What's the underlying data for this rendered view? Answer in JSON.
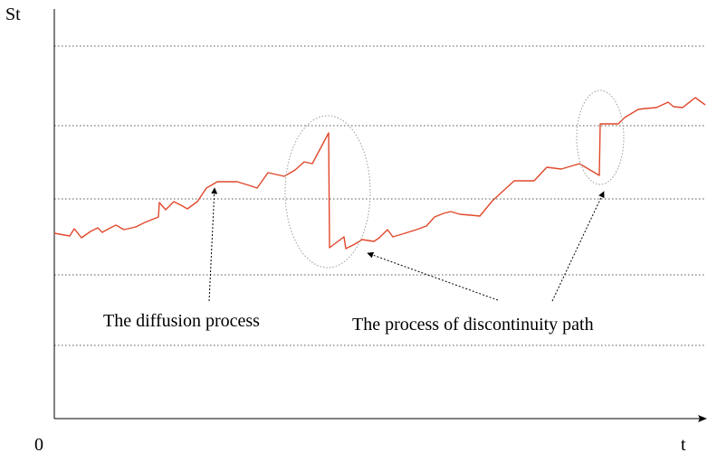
{
  "labels": {
    "y_axis": "St",
    "origin": "0",
    "x_axis": "t",
    "diffusion": "The diffusion process",
    "discontinuity": "The process of discontinuity path"
  },
  "colors": {
    "path": "#e0482b",
    "axis": "#000000",
    "grid": "#555555",
    "ellipse": "#9a9a9a",
    "background": "#ffffff"
  },
  "elements": {
    "gridlines": "dotted horizontal lines",
    "ellipses": "dotted outlines around the two jumps",
    "arrows": "dotted arrows from labels to the path"
  }
}
